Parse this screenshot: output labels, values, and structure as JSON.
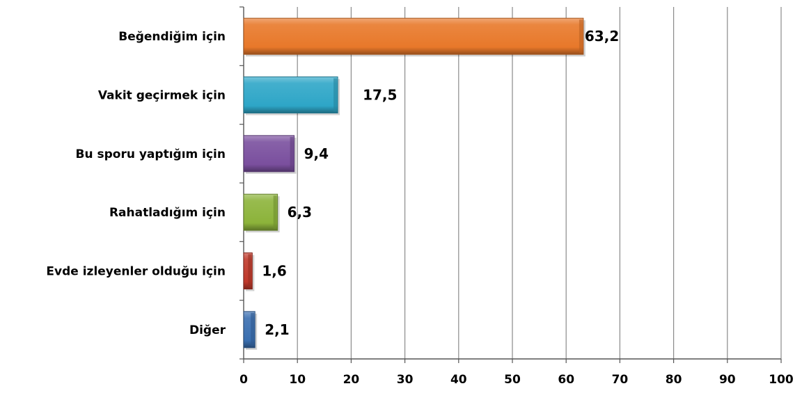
{
  "chart_data": {
    "type": "bar",
    "orientation": "horizontal",
    "categories": [
      "Beğendiğim için",
      "Vakit geçirmek için",
      "Bu sporu yaptığım için",
      "Rahatladığım için",
      "Evde izleyenler olduğu için",
      "Diğer"
    ],
    "values": [
      63.2,
      17.5,
      9.4,
      6.3,
      1.6,
      2.1
    ],
    "data_labels": [
      "63,2",
      "17,5",
      "9,4",
      "6,3",
      "1,6",
      "2,1"
    ],
    "bar_colors": [
      "#E8782A",
      "#2EA6C7",
      "#7A4F9E",
      "#8CB33A",
      "#C0392B",
      "#3A6FB0"
    ],
    "xlim": [
      0,
      100
    ],
    "xticks": [
      "0",
      "10",
      "20",
      "30",
      "40",
      "50",
      "60",
      "70",
      "80",
      "90",
      "100"
    ],
    "title": "",
    "xlabel": "",
    "ylabel": "",
    "grid": "vertical",
    "legend": "none"
  }
}
